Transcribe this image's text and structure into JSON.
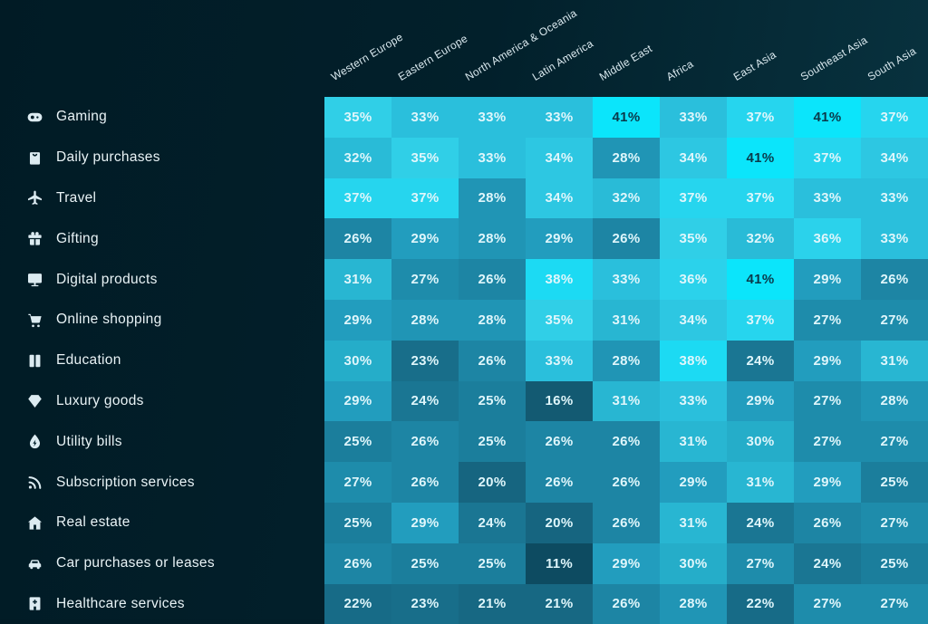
{
  "chart_data": {
    "type": "heatmap",
    "unit": "%",
    "categories": [
      "Western Europe",
      "Eastern Europe",
      "North America & Oceania",
      "Latin America",
      "Middle East",
      "Africa",
      "East Asia",
      "Southeast Asia",
      "South Asia"
    ],
    "rows": [
      {
        "label": "Gaming",
        "icon": "gamepad-icon",
        "values": [
          35,
          33,
          33,
          33,
          41,
          33,
          37,
          41,
          37
        ]
      },
      {
        "label": "Daily purchases",
        "icon": "shopping-bag-icon",
        "values": [
          32,
          35,
          33,
          34,
          28,
          34,
          41,
          37,
          34
        ]
      },
      {
        "label": "Travel",
        "icon": "airplane-icon",
        "values": [
          37,
          37,
          28,
          34,
          32,
          37,
          37,
          33,
          33
        ]
      },
      {
        "label": "Gifting",
        "icon": "gift-icon",
        "values": [
          26,
          29,
          28,
          29,
          26,
          35,
          32,
          36,
          33
        ]
      },
      {
        "label": "Digital products",
        "icon": "monitor-icon",
        "values": [
          31,
          27,
          26,
          38,
          33,
          36,
          41,
          29,
          26
        ]
      },
      {
        "label": "Online shopping",
        "icon": "cart-icon",
        "values": [
          29,
          28,
          28,
          35,
          31,
          34,
          37,
          27,
          27
        ]
      },
      {
        "label": "Education",
        "icon": "book-icon",
        "values": [
          30,
          23,
          26,
          33,
          28,
          38,
          24,
          29,
          31
        ]
      },
      {
        "label": "Luxury goods",
        "icon": "gem-icon",
        "values": [
          29,
          24,
          25,
          16,
          31,
          33,
          29,
          27,
          28
        ]
      },
      {
        "label": "Utility bills",
        "icon": "utility-drop-icon",
        "values": [
          25,
          26,
          25,
          26,
          26,
          31,
          30,
          27,
          27
        ]
      },
      {
        "label": "Subscription services",
        "icon": "rss-icon",
        "values": [
          27,
          26,
          20,
          26,
          26,
          29,
          31,
          29,
          25
        ]
      },
      {
        "label": "Real estate",
        "icon": "house-icon",
        "values": [
          25,
          29,
          24,
          20,
          26,
          31,
          24,
          26,
          27
        ]
      },
      {
        "label": "Car purchases or leases",
        "icon": "car-icon",
        "values": [
          26,
          25,
          25,
          11,
          29,
          30,
          27,
          24,
          25
        ]
      },
      {
        "label": "Healthcare services",
        "icon": "hospital-icon",
        "values": [
          22,
          23,
          21,
          21,
          26,
          28,
          22,
          27,
          27
        ]
      }
    ],
    "value_range": [
      11,
      41
    ],
    "color_scale": [
      {
        "value": 11,
        "color": "#0d4b61"
      },
      {
        "value": 16,
        "color": "#135a72"
      },
      {
        "value": 20,
        "color": "#166580"
      },
      {
        "value": 23,
        "color": "#186e8a"
      },
      {
        "value": 25,
        "color": "#1b7e9c"
      },
      {
        "value": 27,
        "color": "#1e8cab"
      },
      {
        "value": 29,
        "color": "#229dbe"
      },
      {
        "value": 30,
        "color": "#25adc9"
      },
      {
        "value": 31,
        "color": "#28b6d2"
      },
      {
        "value": 33,
        "color": "#2abfdc"
      },
      {
        "value": 35,
        "color": "#30cfe7"
      },
      {
        "value": 37,
        "color": "#26d5ee"
      },
      {
        "value": 38,
        "color": "#1cdaf3"
      },
      {
        "value": 41,
        "color": "#0be5fb"
      }
    ],
    "dark_text_threshold": 40,
    "cell_text_color": "#dff6fb",
    "cell_text_color_dark": "#0a3a4b",
    "background_color": "#02202b",
    "legend_position": "none",
    "grid": false
  }
}
